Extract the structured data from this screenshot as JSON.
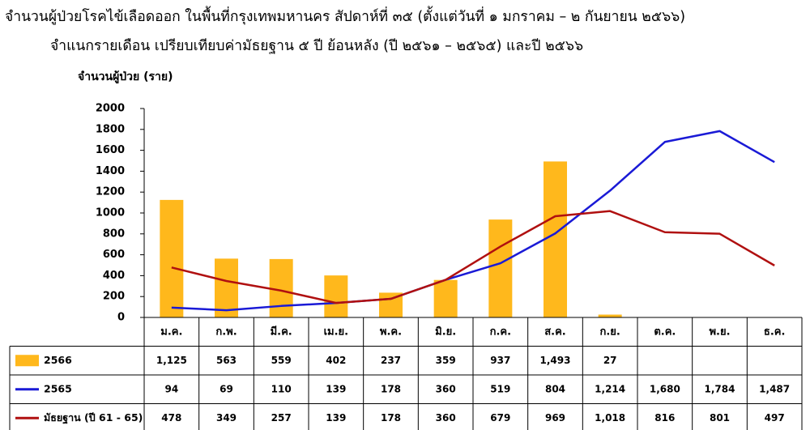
{
  "title_line1": "จำนวนผู้ป่วยโรคไข้เลือดออก ในพื้นที่กรุงเทพมหานคร สัปดาห์ที่ ๓๕ (ตั้งแต่วันที่ ๑ มกราคม – ๒ กันยายน ๒๕๖๖)",
  "title_line2": "จำแนกรายเดือน  เปรียบเทียบค่ามัธยฐาน ๕ ปี ย้อนหลัง (ปี ๒๕๖๑ – ๒๕๖๕) และปี ๒๕๖๖",
  "chart_data": {
    "type": "bar",
    "title": "จำนวนผู้ป่วยโรคไข้เลือดออก ในพื้นที่กรุงเทพมหานคร สัปดาห์ที่ ๓๕ (ตั้งแต่วันที่ ๑ มกราคม – ๒ กันยายน ๒๕๖๖)",
    "subtitle": "จำแนกรายเดือน  เปรียบเทียบค่ามัธยฐาน ๕ ปี ย้อนหลัง (ปี ๒๕๖๑ – ๒๕๖๕) และปี ๒๕๖๖",
    "ylabel": "จำนวนผู้ป่วย (ราย)",
    "ylim": [
      0,
      2000
    ],
    "yticks": [
      0,
      200,
      400,
      600,
      800,
      1000,
      1200,
      1400,
      1600,
      1800,
      2000
    ],
    "grid": false,
    "legend": "data-table-left",
    "categories": [
      "ม.ค.",
      "ก.พ.",
      "มี.ค.",
      "เม.ย.",
      "พ.ค.",
      "มิ.ย.",
      "ก.ค.",
      "ส.ค.",
      "ก.ย.",
      "ต.ค.",
      "พ.ย.",
      "ธ.ค."
    ],
    "series": [
      {
        "name": "2566",
        "type": "bar",
        "color": "#FFB81C",
        "values": [
          1125,
          563,
          559,
          402,
          237,
          359,
          937,
          1493,
          27,
          null,
          null,
          null
        ],
        "labels": [
          "1,125",
          "563",
          "559",
          "402",
          "237",
          "359",
          "937",
          "1,493",
          "27",
          "",
          "",
          ""
        ]
      },
      {
        "name": "2565",
        "type": "line",
        "color": "#1A1AD6",
        "values": [
          94,
          69,
          110,
          139,
          178,
          360,
          519,
          804,
          1214,
          1680,
          1784,
          1487
        ],
        "labels": [
          "94",
          "69",
          "110",
          "139",
          "178",
          "360",
          "519",
          "804",
          "1,214",
          "1,680",
          "1,784",
          "1,487"
        ]
      },
      {
        "name": "มัธยฐาน (ปี 61 - 65)",
        "type": "line",
        "color": "#B01010",
        "values": [
          478,
          349,
          257,
          139,
          178,
          360,
          679,
          969,
          1018,
          816,
          801,
          497
        ],
        "labels": [
          "478",
          "349",
          "257",
          "139",
          "178",
          "360",
          "679",
          "969",
          "1,018",
          "816",
          "801",
          "497"
        ]
      }
    ]
  }
}
